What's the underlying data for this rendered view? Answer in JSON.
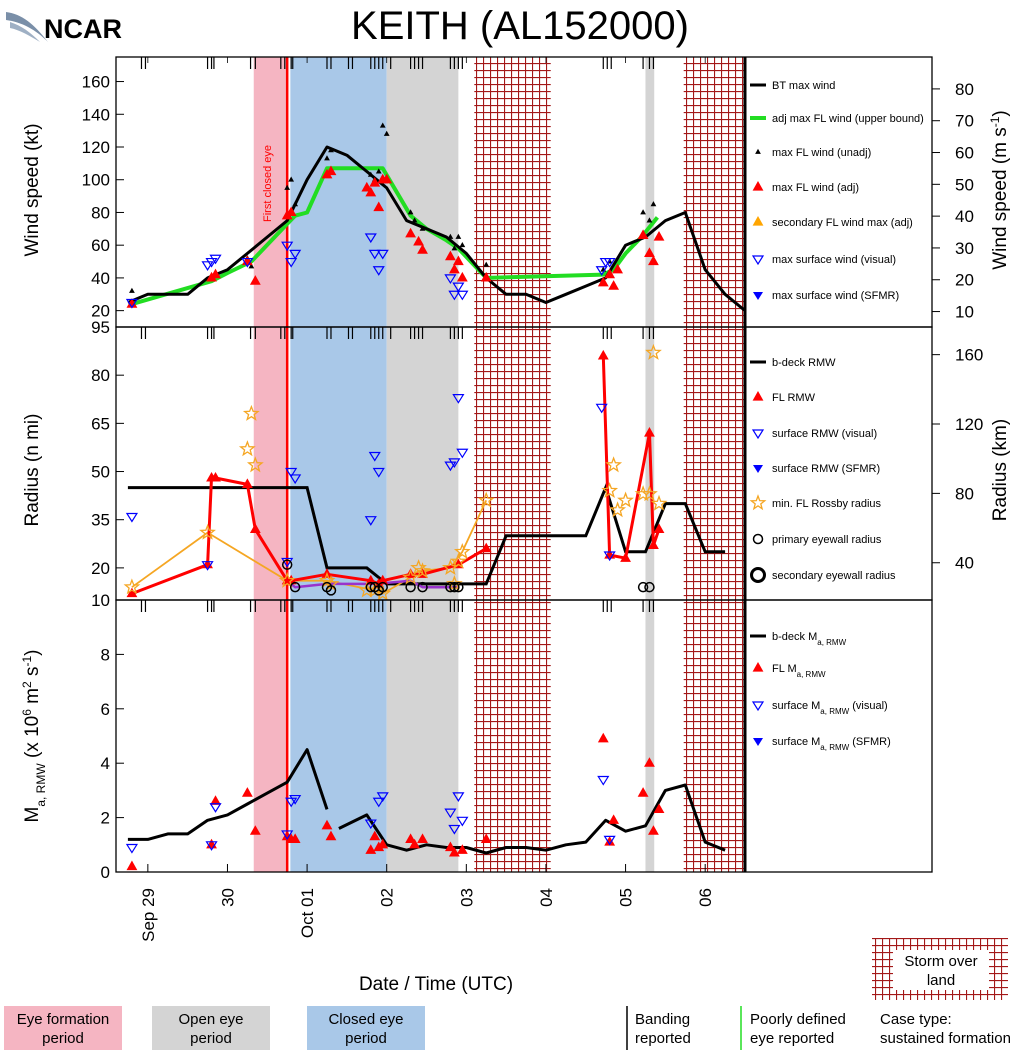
{
  "logo_text": "NCAR",
  "title": "KEITH (AL152000)",
  "eye_label": "First closed eye",
  "xlabel": "Date / Time (UTC)",
  "x_ticks": [
    "Sep 29",
    "30",
    "Oct 01",
    "02",
    "03",
    "04",
    "05",
    "06"
  ],
  "colors": {
    "eye_formation": "#f5b5c2",
    "open_eye": "#d4d4d4",
    "closed_eye": "#a9c8e8",
    "land": "#a31818",
    "fl_adj": "#ff0000",
    "adj_fl_line": "#22dd22",
    "rossby": "#f5a623",
    "eyewall_line": "#9933cc",
    "sfc": "#0000ff"
  },
  "periods": {
    "eye_formation": [
      30.33,
      30.75
    ],
    "closed_eye": [
      30.79,
      32.0
    ],
    "open_eye": [
      [
        32.0,
        32.9
      ],
      [
        35.25,
        35.36
      ]
    ],
    "land": [
      [
        33.1,
        34.06
      ],
      [
        35.73,
        36.5
      ]
    ],
    "first_closed_eye": 30.75
  },
  "banding_times": [
    28.92,
    28.97,
    29.75,
    29.8,
    29.83,
    30.29,
    30.35,
    30.67,
    30.72,
    30.8,
    30.82,
    31.25,
    31.3,
    31.52,
    31.57,
    31.8,
    31.85,
    31.9,
    31.95,
    32.05,
    32.3,
    32.35,
    32.4,
    32.45,
    32.8,
    32.85,
    32.9,
    32.95,
    34.72,
    34.77,
    34.82,
    35.22,
    35.3,
    35.35
  ],
  "legend": {
    "panel1": [
      "BT max wind",
      "adj max FL wind (upper bound)",
      "max FL wind (unadj)",
      "max FL wind (adj)",
      "secondary FL wind max (adj)",
      "max surface wind (visual)",
      "max surface wind (SFMR)"
    ],
    "panel2": [
      "b-deck RMW",
      "FL RMW",
      "surface RMW (visual)",
      "surface RMW (SFMR)",
      "min. FL Rossby radius",
      "primary eyewall radius",
      "secondary eyewall radius"
    ],
    "panel3": [
      "b-deck M",
      "FL M",
      "surface M",
      "surface M"
    ],
    "panel3_suffix": [
      "",
      "",
      " (visual)",
      " (SFMR)"
    ],
    "panel3_sub": "a, RMW"
  },
  "bottom_legend": {
    "eye_formation": [
      "Eye formation",
      "period"
    ],
    "open_eye": [
      "Open eye",
      "period"
    ],
    "closed_eye": [
      "Closed eye",
      "period"
    ],
    "banding": [
      "Banding",
      "reported"
    ],
    "poorly_defined": [
      "Poorly defined",
      "eye reported"
    ],
    "land": [
      "Storm over",
      "land"
    ],
    "case_type": [
      "Case type:",
      "sustained formation"
    ]
  },
  "chart_data": [
    {
      "type": "line",
      "panel": "wind",
      "ylabel": "Wind speed (kt)",
      "ylabel_right": "Wind speed (m s-1)",
      "ylim": [
        10,
        175
      ],
      "yticks": [
        20,
        40,
        60,
        80,
        100,
        120,
        140,
        160
      ],
      "yticks_right": [
        10,
        20,
        30,
        40,
        50,
        60,
        70,
        80
      ],
      "series": [
        {
          "name": "BT max wind",
          "x": [
            28.75,
            29.0,
            29.25,
            29.5,
            29.75,
            30.0,
            30.25,
            30.5,
            30.75,
            31.0,
            31.25,
            31.5,
            31.75,
            32.0,
            32.25,
            32.5,
            32.75,
            33.0,
            33.25,
            33.5,
            33.75,
            34.0,
            34.25,
            34.5,
            34.75,
            35.0,
            35.25,
            35.5,
            35.75,
            36.0,
            36.25,
            36.5
          ],
          "y": [
            25,
            30,
            30,
            30,
            40,
            45,
            55,
            65,
            75,
            100,
            120,
            115,
            105,
            95,
            75,
            70,
            65,
            55,
            40,
            30,
            30,
            25,
            30,
            35,
            40,
            60,
            65,
            75,
            80,
            45,
            30,
            20
          ]
        },
        {
          "name": "adj max FL wind (upper bound)",
          "x": [
            28.8,
            29.8,
            30.0,
            30.3,
            30.75,
            30.85,
            31.0,
            31.25,
            31.95,
            32.3,
            32.5,
            32.75,
            32.9,
            33.25,
            34.72,
            34.85,
            35.0,
            35.2,
            35.4
          ],
          "y": [
            24,
            38,
            43,
            50,
            73,
            78,
            80,
            107,
            107,
            78,
            70,
            63,
            58,
            40,
            42,
            45,
            55,
            65,
            77
          ]
        },
        {
          "name": "max FL wind (unadj)",
          "x": [
            28.8,
            29.8,
            29.85,
            30.25,
            30.3,
            30.75,
            30.8,
            30.85,
            31.25,
            31.3,
            31.8,
            31.85,
            31.9,
            31.95,
            32.0,
            32.3,
            32.35,
            32.45,
            32.8,
            32.85,
            32.9,
            32.95,
            33.25,
            34.72,
            34.8,
            35.22,
            35.3,
            35.35
          ],
          "y": [
            32,
            41,
            43,
            52,
            47,
            95,
            100,
            85,
            113,
            118,
            103,
            100,
            105,
            133,
            128,
            80,
            75,
            70,
            65,
            58,
            65,
            60,
            48,
            45,
            50,
            80,
            75,
            85
          ]
        },
        {
          "name": "max FL wind (adj)",
          "x": [
            28.8,
            29.8,
            29.85,
            30.25,
            30.35,
            30.75,
            30.8,
            31.25,
            31.3,
            31.75,
            31.8,
            31.85,
            31.9,
            31.95,
            32.0,
            32.3,
            32.4,
            32.45,
            32.8,
            32.85,
            32.9,
            32.95,
            33.25,
            34.72,
            34.8,
            34.85,
            34.9,
            35.22,
            35.3,
            35.35,
            35.42
          ],
          "y": [
            24,
            40,
            42,
            50,
            38,
            78,
            80,
            103,
            105,
            95,
            92,
            98,
            83,
            100,
            100,
            67,
            62,
            57,
            53,
            45,
            50,
            40,
            40,
            37,
            42,
            35,
            45,
            66,
            55,
            50,
            65
          ]
        },
        {
          "name": "max surface wind (visual)",
          "x": [
            28.8,
            29.75,
            29.8,
            29.85,
            30.25,
            30.75,
            30.8,
            30.85,
            31.8,
            31.85,
            31.9,
            31.95,
            32.8,
            32.85,
            32.9,
            32.95,
            34.7,
            34.75,
            34.8
          ],
          "y": [
            25,
            48,
            50,
            52,
            50,
            60,
            50,
            55,
            65,
            55,
            45,
            55,
            40,
            30,
            35,
            30,
            45,
            50,
            50
          ]
        },
        {
          "name": "max surface wind (SFMR)",
          "x": [],
          "y": []
        }
      ]
    },
    {
      "type": "line",
      "panel": "radius",
      "ylabel": "Radius (n mi)",
      "ylabel_right": "Radius (km)",
      "ylim": [
        10,
        95
      ],
      "yticks": [
        10,
        20,
        35,
        50,
        65,
        80,
        95
      ],
      "yticks_right": [
        40,
        80,
        120,
        160
      ],
      "series": [
        {
          "name": "b-deck RMW",
          "x": [
            28.75,
            29.0,
            29.5,
            30.0,
            30.5,
            31.0,
            31.25,
            31.5,
            31.75,
            32.0,
            32.5,
            33.0,
            33.25,
            33.5,
            34.0,
            34.5,
            34.75,
            35.0,
            35.25,
            35.5,
            35.75,
            36.0,
            36.25
          ],
          "y": [
            45,
            45,
            45,
            45,
            45,
            45,
            20,
            20,
            20,
            15,
            15,
            15,
            15,
            30,
            30,
            30,
            45,
            25,
            25,
            40,
            40,
            25,
            25
          ]
        },
        {
          "name": "FL RMW",
          "x": [
            28.8,
            29.75,
            29.8,
            29.85,
            30.25,
            30.35,
            30.75,
            30.8,
            31.25,
            31.8,
            31.9,
            31.95,
            32.3,
            32.45,
            32.9,
            33.25,
            34.72,
            34.8,
            35.0,
            35.3,
            35.35,
            35.42
          ],
          "y": [
            12,
            21,
            48,
            48,
            46,
            32,
            16,
            16,
            18,
            16,
            15,
            16,
            18,
            18,
            21,
            26,
            86,
            24,
            23,
            62,
            27,
            32
          ]
        },
        {
          "name": "surface RMW (visual)",
          "x": [
            28.8,
            29.75,
            30.75,
            30.8,
            30.85,
            31.8,
            31.85,
            31.9,
            32.8,
            32.85,
            32.9,
            32.95,
            34.7,
            34.8
          ],
          "y": [
            36,
            21,
            22,
            50,
            48,
            35,
            55,
            50,
            52,
            53,
            73,
            56,
            70,
            24
          ]
        },
        {
          "name": "surface RMW (SFMR)",
          "x": [],
          "y": []
        },
        {
          "name": "min. FL Rossby radius",
          "x": [
            28.8,
            29.75,
            30.25,
            30.3,
            30.35,
            30.75,
            31.25,
            31.3,
            31.75,
            31.85,
            31.95,
            32.3,
            32.4,
            32.45,
            32.8,
            32.85,
            32.9,
            32.95,
            33.25,
            34.8,
            34.85,
            34.9,
            35.0,
            35.22,
            35.3,
            35.35,
            35.42
          ],
          "y": [
            14,
            31,
            57,
            68,
            52,
            16,
            16,
            15,
            13,
            13,
            12,
            17,
            20,
            19,
            20,
            15,
            22,
            25,
            41,
            44,
            52,
            38,
            41,
            43,
            43,
            87,
            40
          ]
        },
        {
          "name": "primary eyewall radius",
          "x": [
            30.75,
            30.85,
            31.25,
            31.3,
            31.8,
            31.85,
            31.9,
            31.95,
            32.3,
            32.45,
            32.8,
            32.85,
            32.9,
            35.22,
            35.3
          ],
          "y": [
            21,
            14,
            14,
            13,
            14,
            14,
            13,
            14,
            14,
            14,
            14,
            14,
            14,
            14,
            14
          ]
        },
        {
          "name": "secondary eyewall radius",
          "x": [],
          "y": []
        }
      ],
      "rossby_line": {
        "x": [
          28.8,
          29.75,
          30.35,
          30.75,
          31.25,
          31.85,
          31.95,
          32.3,
          32.4,
          32.8,
          32.95,
          33.25
        ],
        "y": [
          14,
          31,
          22,
          16,
          16,
          13,
          12,
          17,
          19,
          20,
          25,
          41
        ]
      },
      "eyewall_line": {
        "x": [
          30.75,
          30.85,
          31.25,
          31.85,
          32.3,
          32.45,
          32.9
        ],
        "y": [
          16,
          14,
          15,
          15,
          16,
          14,
          14
        ]
      }
    },
    {
      "type": "line",
      "panel": "ma",
      "ylabel": "Ma, RMW (x 10^6 m^2 s^-1)",
      "ylim": [
        0,
        10
      ],
      "yticks": [
        0,
        2,
        4,
        6,
        8
      ],
      "series": [
        {
          "name": "b-deck Ma, RMW",
          "segments": [
            {
              "x": [
                28.75,
                29.0,
                29.25,
                29.5,
                29.75,
                30.0,
                30.25,
                30.5,
                30.75,
                31.0,
                31.25
              ],
              "y": [
                1.2,
                1.2,
                1.4,
                1.4,
                1.9,
                2.1,
                2.5,
                2.9,
                3.3,
                4.5,
                2.3
              ]
            },
            {
              "x": [
                31.4,
                31.75,
                32.0,
                32.25,
                32.5,
                32.75,
                33.0,
                33.25,
                33.5,
                33.75,
                34.0,
                34.25,
                34.5,
                34.75,
                35.0,
                35.25,
                35.5,
                35.75,
                36.0,
                36.25
              ],
              "y": [
                1.6,
                2.1,
                1.0,
                0.8,
                1.0,
                0.9,
                0.9,
                0.7,
                0.9,
                0.9,
                0.8,
                1.0,
                1.1,
                1.9,
                1.5,
                1.7,
                3.0,
                3.2,
                1.1,
                0.8
              ]
            }
          ]
        },
        {
          "name": "FL Ma, RMW",
          "x": [
            28.8,
            29.8,
            29.85,
            30.25,
            30.35,
            30.75,
            30.8,
            30.85,
            31.25,
            31.3,
            31.8,
            31.85,
            31.9,
            31.95,
            32.3,
            32.35,
            32.45,
            32.8,
            32.85,
            32.95,
            33.25,
            34.72,
            34.8,
            34.85,
            35.22,
            35.3,
            35.35,
            35.42
          ],
          "y": [
            0.2,
            1.0,
            2.6,
            2.9,
            1.5,
            1.3,
            1.2,
            1.2,
            1.7,
            1.3,
            0.8,
            1.3,
            0.9,
            1.0,
            1.2,
            1.0,
            1.2,
            0.9,
            0.7,
            0.8,
            1.2,
            4.9,
            1.1,
            1.9,
            2.9,
            4.0,
            1.5,
            2.3
          ]
        },
        {
          "name": "surface Ma, RMW (visual)",
          "x": [
            28.8,
            29.8,
            29.85,
            30.75,
            30.8,
            30.85,
            31.8,
            31.9,
            31.95,
            32.8,
            32.85,
            32.9,
            32.95,
            34.72,
            34.8
          ],
          "y": [
            0.9,
            1.0,
            2.4,
            1.4,
            2.6,
            2.7,
            1.8,
            2.6,
            2.8,
            2.2,
            1.6,
            2.8,
            1.9,
            3.4,
            1.2
          ]
        },
        {
          "name": "surface Ma, RMW (SFMR)",
          "x": [],
          "y": []
        }
      ]
    }
  ]
}
